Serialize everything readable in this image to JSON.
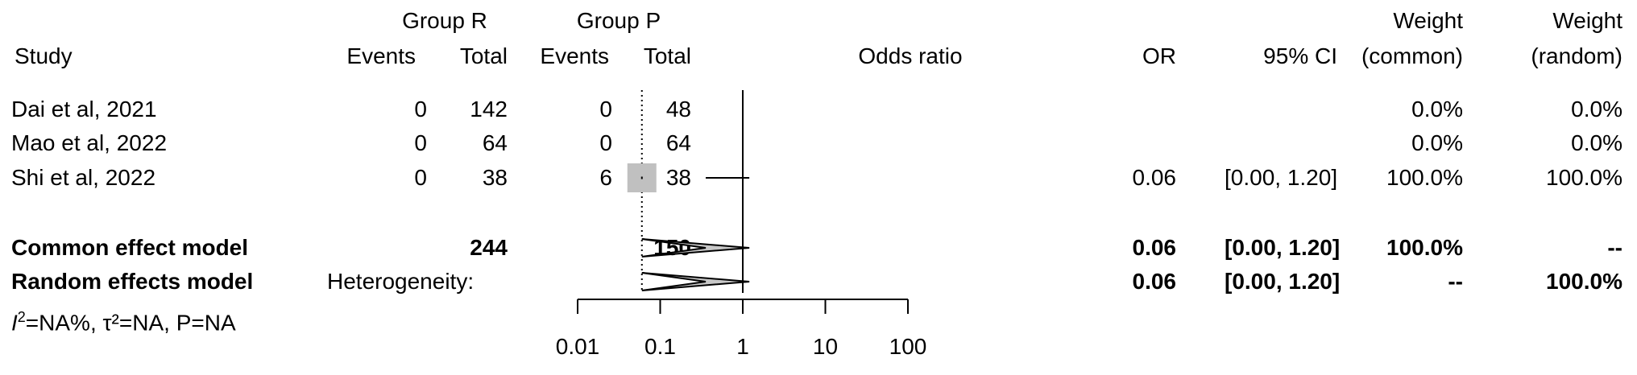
{
  "headers": {
    "group_r": "Group R",
    "group_p": "Group P",
    "study": "Study",
    "events_r": "Events",
    "total_r": "Total",
    "events_p": "Events",
    "total_p": "Total",
    "odds_ratio": "Odds ratio",
    "or": "OR",
    "ci": "95%  CI",
    "weight_common_1": "Weight",
    "weight_common_2": "(common)",
    "weight_random_1": "Weight",
    "weight_random_2": "(random)"
  },
  "studies": [
    {
      "name": "Dai et al, 2021",
      "events_r": "0",
      "total_r": "142",
      "events_p": "0",
      "total_p": "48",
      "or": "",
      "ci": "",
      "weight_common": "0.0%",
      "weight_random": "0.0%"
    },
    {
      "name": "Mao et al, 2022",
      "events_r": "0",
      "total_r": "64",
      "events_p": "0",
      "total_p": "64",
      "or": "",
      "ci": "",
      "weight_common": "0.0%",
      "weight_random": "0.0%"
    },
    {
      "name": "Shi et al, 2022",
      "events_r": "0",
      "total_r": "38",
      "events_p": "6",
      "total_p": "38",
      "or": "0.06",
      "ci": "[0.00, 1.20]",
      "weight_common": "100.0%",
      "weight_random": "100.0%"
    }
  ],
  "common": {
    "label": "Common effect model",
    "total_r": "244",
    "total_p": "150",
    "or": "0.06",
    "ci": "[0.00, 1.20]",
    "weight_common": "100.0%",
    "weight_random": "--"
  },
  "random": {
    "label": "Random effects model",
    "heterogeneity_label": "Heterogeneity:",
    "heterogeneity_stats": "=NA%, τ²=NA, P=NA",
    "i2_symbol": "I",
    "i2_sup": "2",
    "or": "0.06",
    "ci": "[0.00, 1.20]",
    "weight_common": "--",
    "weight_random": "100.0%"
  },
  "chart_data": {
    "type": "forest",
    "scale": "log",
    "x_ticks": [
      0.01,
      0.1,
      1,
      10,
      100
    ],
    "x_tick_labels": [
      "0.01",
      "0.1",
      "1",
      "10",
      "100"
    ],
    "xlim": [
      0.01,
      100
    ],
    "reference_line": 1,
    "pooled_estimate_line": 0.06,
    "studies": [
      {
        "name": "Dai et al, 2021",
        "or": null,
        "lower": null,
        "upper": null
      },
      {
        "name": "Mao et al, 2022",
        "or": null,
        "lower": null,
        "upper": null
      },
      {
        "name": "Shi et al, 2022",
        "or": 0.06,
        "lower": 0.003,
        "upper": 1.2,
        "weight": 100
      }
    ],
    "pooled": [
      {
        "name": "Common effect model",
        "or": 0.06,
        "lower": 0.003,
        "upper": 1.2
      },
      {
        "name": "Random effects model",
        "or": 0.06,
        "lower": 0.003,
        "upper": 1.2
      }
    ],
    "colors": {
      "box": "#c0c0c0",
      "diamond": "#c8c8c8",
      "line": "#000000"
    }
  }
}
